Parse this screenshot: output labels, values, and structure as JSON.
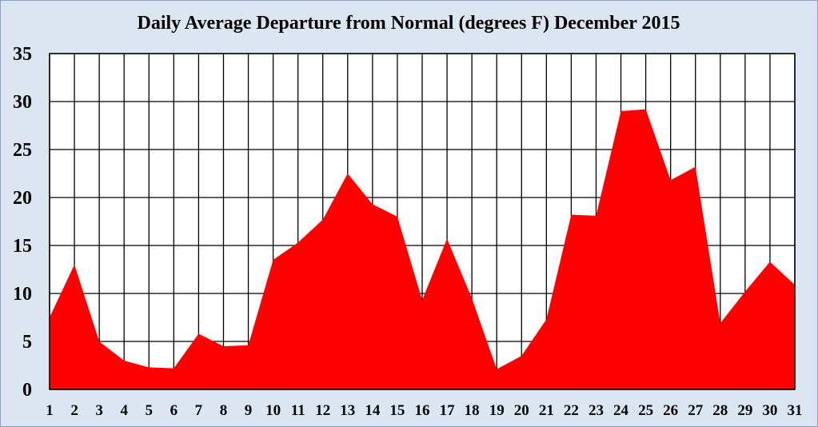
{
  "chart_data": {
    "type": "area",
    "title": "Daily Average Departure from Normal (degrees F) December 2015",
    "xlabel": "",
    "ylabel": "",
    "x": [
      1,
      2,
      3,
      4,
      5,
      6,
      7,
      8,
      9,
      10,
      11,
      12,
      13,
      14,
      15,
      16,
      17,
      18,
      19,
      20,
      21,
      22,
      23,
      24,
      25,
      26,
      27,
      28,
      29,
      30,
      31
    ],
    "values": [
      7.5,
      13,
      5,
      3,
      2.3,
      2.2,
      5.8,
      4.5,
      4.6,
      13.5,
      15.3,
      17.7,
      22.5,
      19.3,
      18,
      9.3,
      15.7,
      9.5,
      2.1,
      3.5,
      7.3,
      18.2,
      18.1,
      29,
      29.2,
      21.8,
      23.2,
      6.9,
      10.2,
      13.3,
      10.9
    ],
    "ylim": [
      0,
      35
    ],
    "yticks": [
      0,
      5,
      10,
      15,
      20,
      25,
      30,
      35
    ],
    "grid": true,
    "fill_color": "#ff0000",
    "plot_background": "#ffffff",
    "page_background": "#dce6f2"
  }
}
